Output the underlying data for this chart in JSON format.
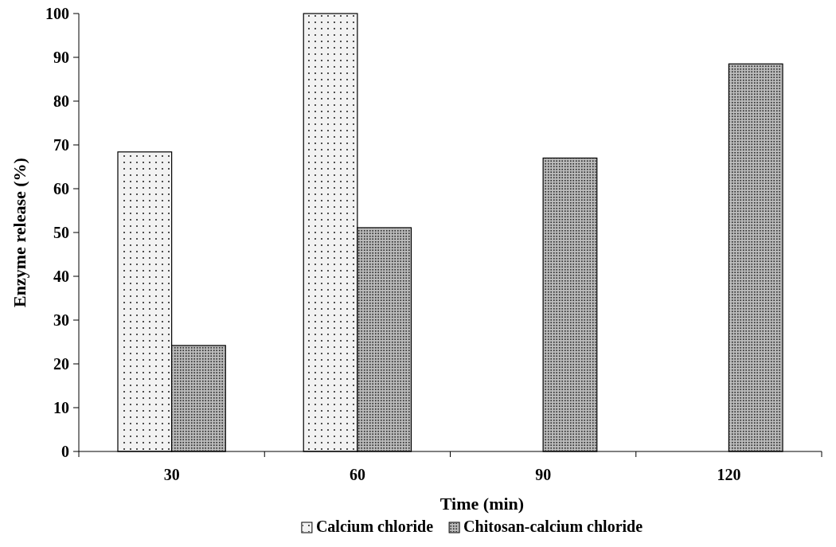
{
  "chart_data": {
    "type": "bar",
    "xlabel": "Time (min)",
    "ylabel": "Enzyme release (%)",
    "categories": [
      "30",
      "60",
      "90",
      "120"
    ],
    "series": [
      {
        "name": "Calcium chloride",
        "color": "#f2f2f2",
        "values": [
          68.4,
          100,
          null,
          null
        ]
      },
      {
        "name": "Chitosan-calcium chloride",
        "color": "#bdbdbd",
        "values": [
          24.2,
          51.1,
          67.0,
          88.5
        ]
      }
    ],
    "ylim": [
      0,
      100
    ],
    "yticks": [
      0,
      10,
      20,
      30,
      40,
      50,
      60,
      70,
      80,
      90,
      100
    ],
    "grid": false,
    "legend": "bottom"
  }
}
